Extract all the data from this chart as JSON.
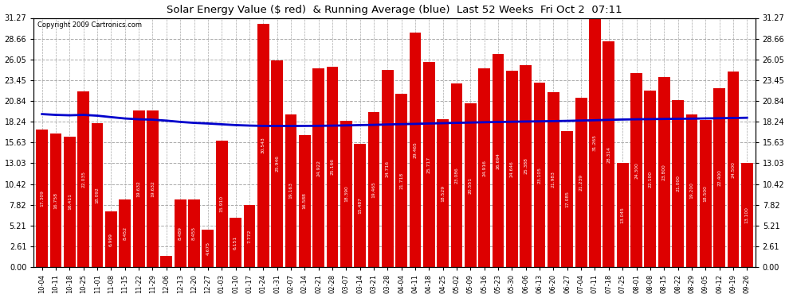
{
  "title": "Solar Energy Value ($ red)  & Running Average (blue)  Last 52 Weeks  Fri Oct 2  07:11",
  "copyright": "Copyright 2009 Cartronics.com",
  "bar_color": "#dd0000",
  "line_color": "#0000cc",
  "background_color": "#ffffff",
  "grid_color": "#aaaaaa",
  "ylim": [
    0.0,
    31.27
  ],
  "yticks": [
    0.0,
    2.61,
    5.21,
    7.82,
    10.42,
    13.03,
    15.63,
    18.24,
    20.84,
    23.45,
    26.05,
    28.66,
    31.27
  ],
  "categories": [
    "10-04",
    "10-11",
    "10-18",
    "10-25",
    "11-01",
    "11-08",
    "11-15",
    "11-22",
    "11-29",
    "12-06",
    "12-13",
    "12-20",
    "12-27",
    "01-03",
    "01-10",
    "01-17",
    "01-24",
    "01-31",
    "02-07",
    "02-14",
    "02-21",
    "02-28",
    "03-07",
    "03-14",
    "03-21",
    "03-28",
    "04-04",
    "04-11",
    "04-18",
    "04-25",
    "05-02",
    "05-09",
    "05-16",
    "05-23",
    "05-30",
    "06-06",
    "06-13",
    "06-20",
    "06-27",
    "07-04",
    "07-11",
    "07-18",
    "07-25",
    "08-01",
    "08-08",
    "08-15",
    "08-22",
    "08-29",
    "09-05",
    "09-12",
    "09-19",
    "09-26"
  ],
  "bar_values": [
    17.309,
    16.758,
    16.411,
    22.035,
    18.092,
    6.999,
    8.452,
    19.632,
    19.632,
    1.369,
    8.489,
    8.455,
    4.675,
    15.91,
    6.151,
    7.772,
    30.543,
    25.946,
    19.163,
    16.588,
    24.922,
    25.166,
    18.39,
    15.487,
    19.465,
    24.716,
    21.718,
    29.465,
    25.717,
    18.529,
    23.086,
    20.551,
    24.916,
    26.694,
    24.646,
    25.388,
    23.105,
    21.983,
    17.085,
    21.239,
    31.265,
    28.314,
    13.045,
    24.3,
    22.1,
    23.8,
    21.0,
    19.2,
    18.5,
    22.4,
    24.5,
    13.1
  ],
  "running_avg": [
    19.2,
    19.1,
    19.05,
    19.1,
    19.0,
    18.82,
    18.65,
    18.55,
    18.5,
    18.38,
    18.22,
    18.1,
    18.02,
    17.92,
    17.82,
    17.76,
    17.72,
    17.72,
    17.71,
    17.72,
    17.73,
    17.75,
    17.78,
    17.82,
    17.85,
    17.9,
    17.94,
    17.97,
    18.02,
    18.06,
    18.1,
    18.14,
    18.18,
    18.21,
    18.24,
    18.27,
    18.29,
    18.32,
    18.35,
    18.39,
    18.43,
    18.48,
    18.52,
    18.55,
    18.57,
    18.59,
    18.61,
    18.63,
    18.66,
    18.68,
    18.71,
    18.74
  ]
}
